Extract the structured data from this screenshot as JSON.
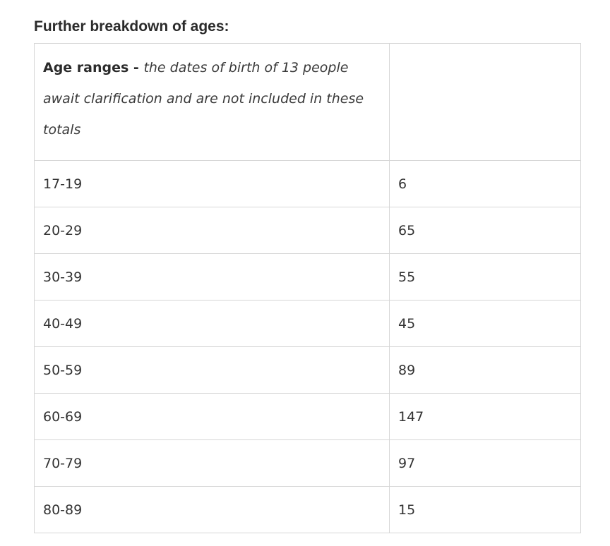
{
  "heading": "Further breakdown of ages:",
  "table": {
    "header": {
      "lead": "Age ranges - ",
      "note": "the dates of birth of 13 people await clarification and are not included in these totals",
      "second": ""
    },
    "rows": [
      {
        "range": "17-19",
        "count": "6"
      },
      {
        "range": "20-29",
        "count": "65"
      },
      {
        "range": "30-39",
        "count": "55"
      },
      {
        "range": "40-49",
        "count": "45"
      },
      {
        "range": "50-59",
        "count": "89"
      },
      {
        "range": "60-69",
        "count": "147"
      },
      {
        "range": "70-79",
        "count": "97"
      },
      {
        "range": "80-89",
        "count": "15"
      }
    ]
  }
}
